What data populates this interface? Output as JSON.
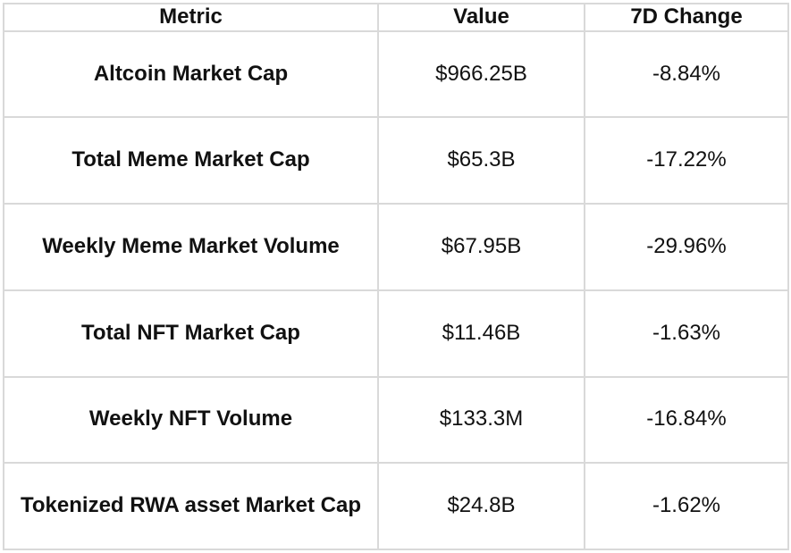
{
  "chart_data": {
    "type": "table",
    "columns": [
      "Metric",
      "Value",
      "7D Change"
    ],
    "rows": [
      {
        "metric": "Altcoin Market Cap",
        "value": "$966.25B",
        "change": "-8.84%"
      },
      {
        "metric": "Total Meme Market Cap",
        "value": "$65.3B",
        "change": "-17.22%"
      },
      {
        "metric": "Weekly Meme Market Volume",
        "value": "$67.95B",
        "change": "-29.96%"
      },
      {
        "metric": "Total NFT Market Cap",
        "value": "$11.46B",
        "change": "-1.63%"
      },
      {
        "metric": "Weekly NFT Volume",
        "value": "$133.3M",
        "change": "-16.84%"
      },
      {
        "metric": "Tokenized RWA asset Market Cap",
        "value": "$24.8B",
        "change": "-1.62%"
      }
    ],
    "layout": {
      "grid": "all-borders",
      "text_align": "center",
      "header_weight": "bold",
      "metric_column_weight": "bold"
    }
  },
  "colors": {
    "background": "#ffffff",
    "border": "#d9d9d9",
    "text": "#111111"
  }
}
